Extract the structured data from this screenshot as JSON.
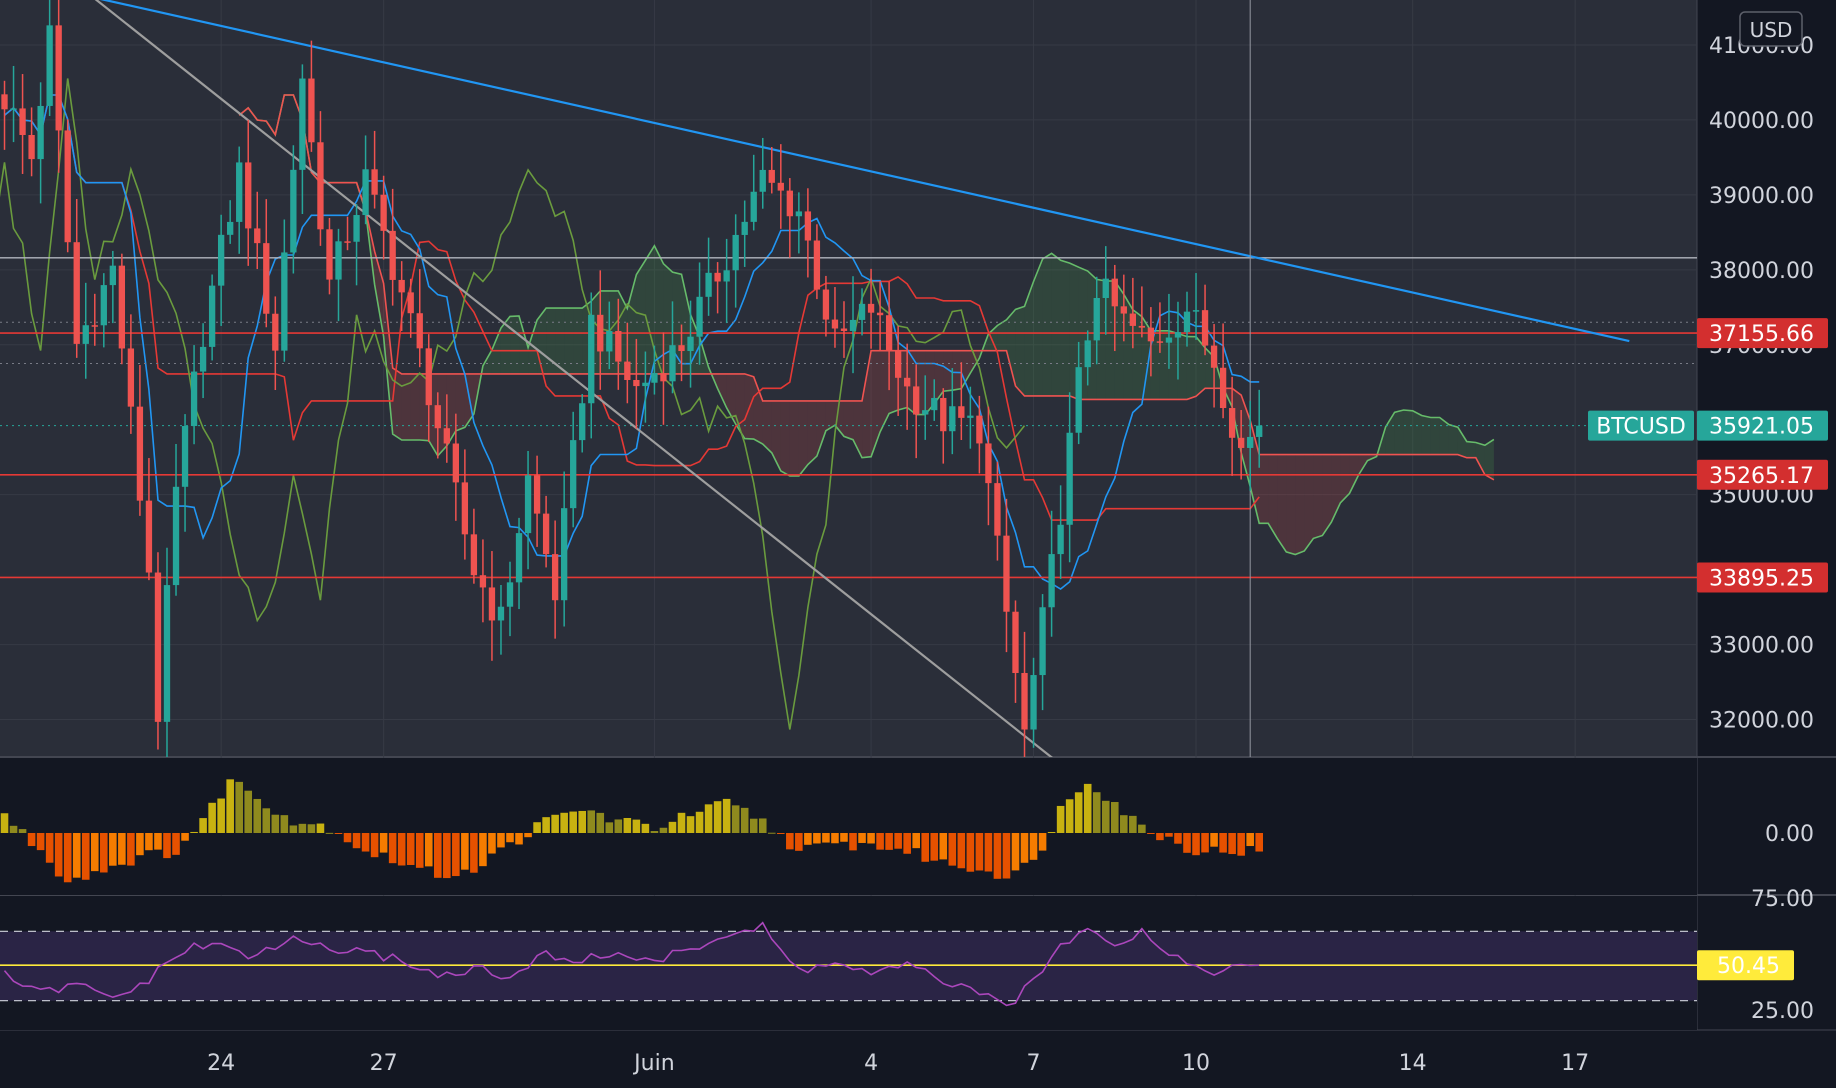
{
  "chart_data": [
    {
      "type": "candlestick",
      "symbol": "BTCUSD",
      "currency": "USD",
      "ylim": [
        31500,
        41600
      ],
      "y_ticks": [
        {
          "value": 41000,
          "label": "41000.00"
        },
        {
          "value": 40000,
          "label": "40000.00"
        },
        {
          "value": 39000,
          "label": "39000.00"
        },
        {
          "value": 38000,
          "label": "38000.00"
        },
        {
          "value": 37000,
          "label": "37000.00"
        },
        {
          "value": 35000,
          "label": "35000.00"
        },
        {
          "value": 33000,
          "label": "33000.00"
        },
        {
          "value": 32000,
          "label": "32000.00"
        }
      ],
      "x_ticks": [
        {
          "label": "24",
          "bar": 24
        },
        {
          "label": "27",
          "bar": 42
        },
        {
          "label": "Juin",
          "bar": 72
        },
        {
          "label": "4",
          "bar": 96
        },
        {
          "label": "7",
          "bar": 114
        },
        {
          "label": "10",
          "bar": 132
        },
        {
          "label": "14",
          "bar": 156
        },
        {
          "label": "17",
          "bar": 174
        }
      ],
      "bars_total": 188,
      "last_price": {
        "label": "BTCUSD",
        "value": "35921.05",
        "numeric": 35921.05
      },
      "price_levels": [
        {
          "label": "37155.66",
          "value": 37155.66,
          "color": "#e53935"
        },
        {
          "label": "35265.17",
          "value": 35265.17,
          "color": "#e53935"
        },
        {
          "label": "33895.25",
          "value": 33895.25,
          "color": "#e53935"
        }
      ],
      "horizontal_reference": 38160,
      "dotted_levels": [
        37300,
        36750
      ],
      "vertical_crosshair_bar": 138,
      "trendlines": [
        {
          "name": "descending-resistance",
          "color": "#2196f3",
          "points": [
            [
              0,
              41900
            ],
            [
              180,
              37050
            ]
          ]
        },
        {
          "name": "descending-support",
          "color": "#9e9e9e",
          "points": [
            [
              6,
              42000
            ],
            [
              117,
              31400
            ]
          ]
        }
      ],
      "ohlc_waypoints": [
        [
          0,
          40300
        ],
        [
          3,
          39500
        ],
        [
          5,
          41100
        ],
        [
          8,
          37000
        ],
        [
          12,
          38000
        ],
        [
          16,
          34000
        ],
        [
          17,
          32100
        ],
        [
          19,
          35000
        ],
        [
          22,
          37200
        ],
        [
          26,
          39300
        ],
        [
          30,
          37000
        ],
        [
          33,
          40600
        ],
        [
          36,
          37800
        ],
        [
          40,
          39200
        ],
        [
          44,
          37700
        ],
        [
          47,
          36400
        ],
        [
          52,
          34000
        ],
        [
          55,
          33300
        ],
        [
          58,
          35200
        ],
        [
          61,
          33700
        ],
        [
          65,
          37300
        ],
        [
          70,
          36400
        ],
        [
          75,
          37000
        ],
        [
          80,
          38200
        ],
        [
          84,
          39200
        ],
        [
          88,
          38800
        ],
        [
          92,
          37000
        ],
        [
          96,
          37500
        ],
        [
          100,
          36400
        ],
        [
          104,
          36000
        ],
        [
          108,
          35900
        ],
        [
          111,
          33400
        ],
        [
          113,
          31800
        ],
        [
          116,
          34000
        ],
        [
          119,
          36500
        ],
        [
          121,
          37800
        ],
        [
          124,
          37300
        ],
        [
          127,
          37000
        ],
        [
          131,
          37500
        ],
        [
          134,
          36800
        ],
        [
          137,
          35600
        ],
        [
          139,
          35921
        ]
      ],
      "series": [
        {
          "name": "tenkan",
          "color": "#2196f3"
        },
        {
          "name": "kijun",
          "color": "#e53935"
        },
        {
          "name": "chikou",
          "color": "#43a047"
        },
        {
          "name": "senkou-a",
          "color": "#66bb6a"
        },
        {
          "name": "senkou-b",
          "color": "#ef5350"
        }
      ]
    },
    {
      "type": "bar",
      "name": "momentum",
      "y_ticks": [
        {
          "value": 0,
          "label": "0.00"
        }
      ],
      "waypoints": [
        [
          0,
          3
        ],
        [
          4,
          -3
        ],
        [
          7,
          -8
        ],
        [
          11,
          -6
        ],
        [
          15,
          -4
        ],
        [
          19,
          -3
        ],
        [
          22,
          2
        ],
        [
          25,
          9
        ],
        [
          28,
          6
        ],
        [
          32,
          2
        ],
        [
          36,
          1
        ],
        [
          40,
          -3
        ],
        [
          44,
          -5
        ],
        [
          48,
          -7
        ],
        [
          52,
          -6
        ],
        [
          56,
          -2
        ],
        [
          60,
          2
        ],
        [
          64,
          4
        ],
        [
          68,
          2
        ],
        [
          72,
          1
        ],
        [
          76,
          3
        ],
        [
          80,
          5
        ],
        [
          84,
          2
        ],
        [
          88,
          -3
        ],
        [
          92,
          -2
        ],
        [
          96,
          -2
        ],
        [
          100,
          -3
        ],
        [
          104,
          -5
        ],
        [
          108,
          -6
        ],
        [
          111,
          -7
        ],
        [
          114,
          -5
        ],
        [
          117,
          4
        ],
        [
          120,
          9
        ],
        [
          123,
          5
        ],
        [
          126,
          1
        ],
        [
          129,
          -1
        ],
        [
          132,
          -3
        ],
        [
          135,
          -3
        ],
        [
          139,
          -3
        ]
      ]
    },
    {
      "type": "line",
      "name": "rsi",
      "y_ticks": [
        {
          "value": 75,
          "label": "75.00"
        },
        {
          "value": 25,
          "label": "25.00"
        }
      ],
      "bands": {
        "upper": 70,
        "lower": 30
      },
      "current": {
        "value": "50.45",
        "numeric": 50.45
      },
      "waypoints": [
        [
          0,
          45
        ],
        [
          4,
          34
        ],
        [
          8,
          39
        ],
        [
          12,
          31
        ],
        [
          16,
          42
        ],
        [
          20,
          60
        ],
        [
          24,
          62
        ],
        [
          28,
          55
        ],
        [
          32,
          66
        ],
        [
          36,
          60
        ],
        [
          40,
          57
        ],
        [
          44,
          54
        ],
        [
          48,
          44
        ],
        [
          52,
          49
        ],
        [
          56,
          42
        ],
        [
          60,
          57
        ],
        [
          64,
          53
        ],
        [
          68,
          58
        ],
        [
          72,
          52
        ],
        [
          76,
          60
        ],
        [
          80,
          68
        ],
        [
          84,
          72
        ],
        [
          88,
          47
        ],
        [
          92,
          52
        ],
        [
          96,
          45
        ],
        [
          100,
          50
        ],
        [
          104,
          42
        ],
        [
          108,
          33
        ],
        [
          111,
          27
        ],
        [
          114,
          40
        ],
        [
          117,
          62
        ],
        [
          120,
          74
        ],
        [
          123,
          63
        ],
        [
          126,
          70
        ],
        [
          129,
          58
        ],
        [
          132,
          49
        ],
        [
          135,
          47
        ],
        [
          139,
          50.45
        ]
      ]
    }
  ]
}
